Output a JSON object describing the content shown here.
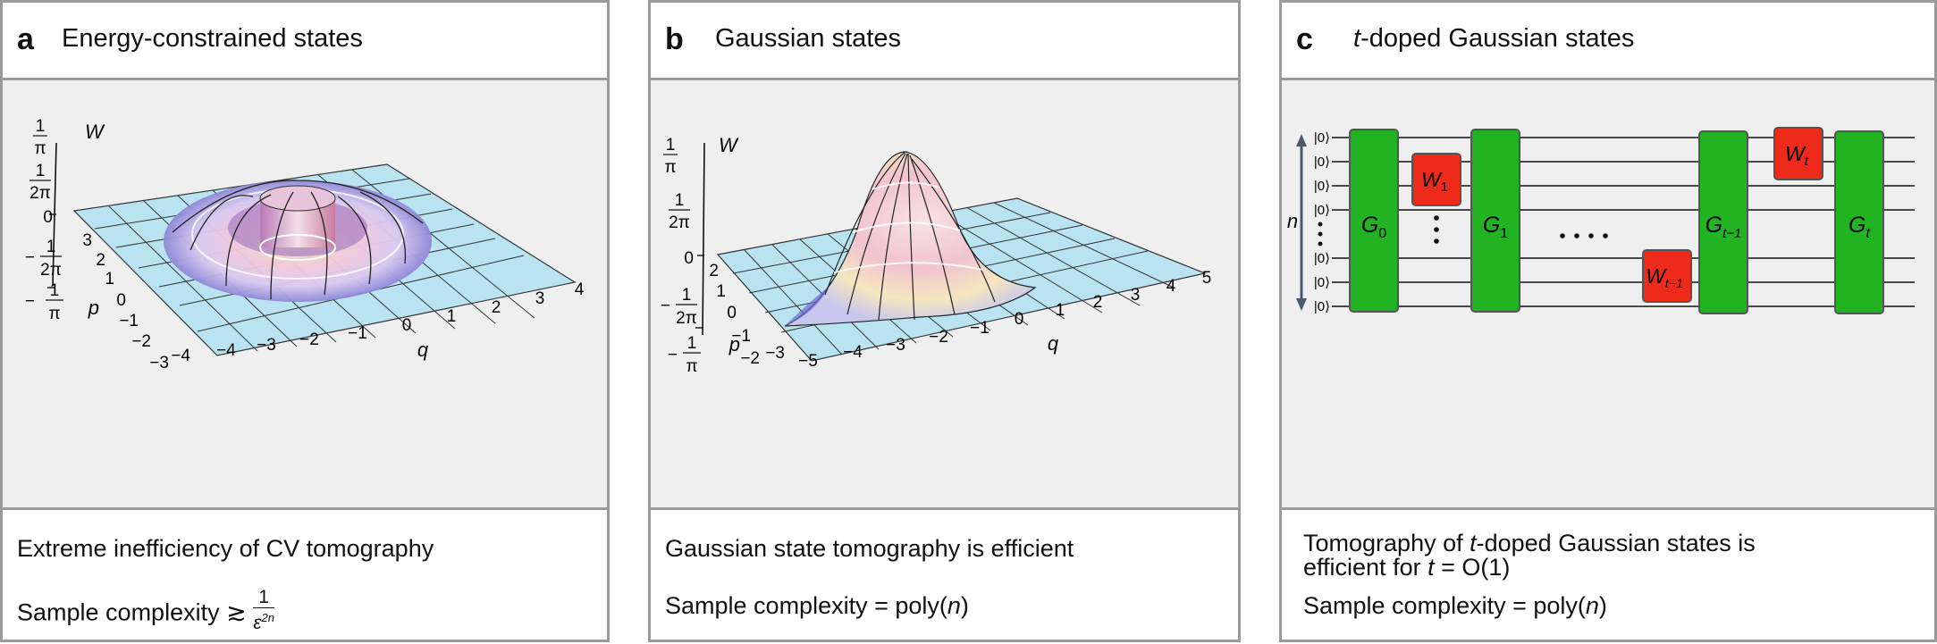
{
  "panels": [
    {
      "letter": "a",
      "title": "Energy-constrained states",
      "axis": {
        "w_label": "W",
        "p_label": "p",
        "q_label": "q",
        "w_ticks": {
          "t1_num": "1",
          "t1_den": "π",
          "t2_num": "1",
          "t2_den": "2π",
          "t3": "0",
          "t4_pre": "−",
          "t4_num": "1",
          "t4_den": "2π",
          "t5_pre": "−",
          "t5_num": "1",
          "t5_den": "π"
        },
        "p_ticks": [
          "3",
          "2",
          "1",
          "0",
          "−1",
          "−2",
          "−3",
          "−4"
        ],
        "q_ticks": [
          "−4",
          "−3",
          "−2",
          "−1",
          "0",
          "1",
          "2",
          "3",
          "4"
        ]
      },
      "caption_line1": "Extreme inefficiency of CV tomography",
      "caption_line2": "Sample complexity",
      "complexity_rel": "≳",
      "complexity_num": "1",
      "complexity_den": "ε",
      "complexity_exp": "2n"
    },
    {
      "letter": "b",
      "title": "Gaussian states",
      "axis": {
        "w_label": "W",
        "p_label": "p",
        "q_label": "q",
        "w_ticks": {
          "t1_num": "1",
          "t1_den": "π",
          "t2_num": "1",
          "t2_den": "2π",
          "t3": "0",
          "t4_pre": "−",
          "t4_num": "1",
          "t4_den": "2π",
          "t5_pre": "−",
          "t5_num": "1",
          "t5_den": "π"
        },
        "p_ticks": [
          "2",
          "1",
          "0",
          "−1",
          "−2",
          "−3"
        ],
        "q_ticks": [
          "−5",
          "−4",
          "−3",
          "−2",
          "−1",
          "0",
          "1",
          "2",
          "3",
          "4",
          "5"
        ]
      },
      "caption_line1": "Gaussian state tomography is efficient",
      "caption_line2_pre": "Sample complexity = poly(",
      "caption_line2_var": "n",
      "caption_line2_post": ")"
    },
    {
      "letter": "c",
      "title_var": "t",
      "title_rest": "-doped Gaussian states",
      "circuit": {
        "ket": "|0⟩",
        "n_label": "n",
        "gates": {
          "g0": "G",
          "g0_sub": "0",
          "g1": "G",
          "g1_sub": "1",
          "gt1": "G",
          "gt1_sub": "t−1",
          "gt": "G",
          "gt_sub": "t",
          "w1": "W",
          "w1_sub": "1",
          "wt1": "W",
          "wt1_sub": "t−1",
          "wt": "W",
          "wt_sub": "t"
        },
        "colors": {
          "gaussian": "#21b321",
          "non_gaussian": "#ee2b1b"
        }
      },
      "caption_line1_pre": "Tomography of ",
      "caption_line1_var": "t",
      "caption_line1_post": "-doped Gaussian states is",
      "caption_line2_pre": "efficient for ",
      "caption_line2_var": "t",
      "caption_line2_post": " = O(1)",
      "caption_line3_pre": "Sample complexity = poly(",
      "caption_line3_var": "n",
      "caption_line3_post": ")"
    }
  ]
}
